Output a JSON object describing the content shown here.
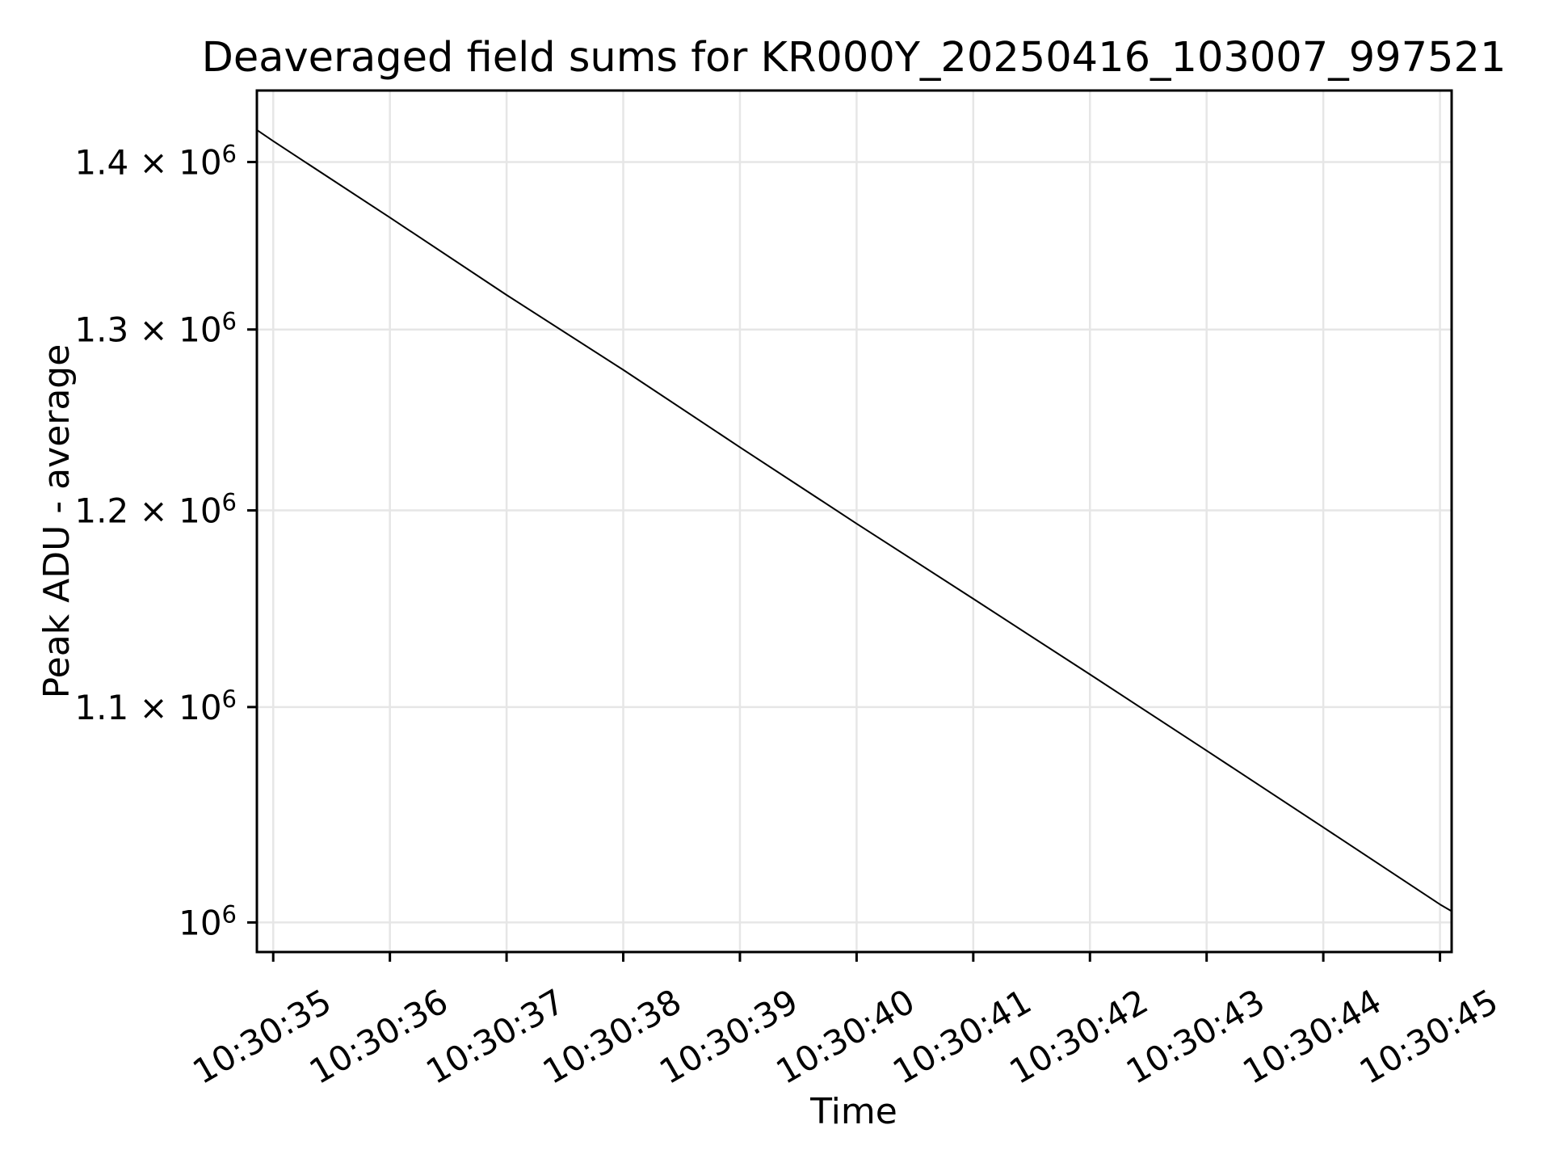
{
  "page": {
    "background": "#ffffff"
  },
  "chart_data": {
    "type": "line",
    "title": "Deaveraged field sums for KR000Y_20250416_103007_997521",
    "xlabel": "Time",
    "ylabel": "Peak ADU - average",
    "yscale": "log",
    "grid": true,
    "legend_position": "none",
    "background_color": "#ffffff",
    "axis_color": "#000000",
    "grid_color": "#e6e6e6",
    "line_color": "#000000",
    "xlim_seconds": [
      34.86,
      45.1
    ],
    "ylim": [
      987000,
      1445000
    ],
    "x_tick_rotation_deg": 30,
    "x_ticks": [
      {
        "t": 35,
        "label": "10:30:35"
      },
      {
        "t": 36,
        "label": "10:30:36"
      },
      {
        "t": 37,
        "label": "10:30:37"
      },
      {
        "t": 38,
        "label": "10:30:38"
      },
      {
        "t": 39,
        "label": "10:30:39"
      },
      {
        "t": 40,
        "label": "10:30:40"
      },
      {
        "t": 41,
        "label": "10:30:41"
      },
      {
        "t": 42,
        "label": "10:30:42"
      },
      {
        "t": 43,
        "label": "10:30:43"
      },
      {
        "t": 44,
        "label": "10:30:44"
      },
      {
        "t": 45,
        "label": "10:30:45"
      }
    ],
    "y_ticks": [
      {
        "value": 1000000,
        "base": "10",
        "exp": "6"
      },
      {
        "value": 1100000,
        "base": "1.1 × 10",
        "exp": "6"
      },
      {
        "value": 1200000,
        "base": "1.2 × 10",
        "exp": "6"
      },
      {
        "value": 1300000,
        "base": "1.3 × 10",
        "exp": "6"
      },
      {
        "value": 1400000,
        "base": "1.4 × 10",
        "exp": "6"
      }
    ],
    "series": [
      {
        "color": "#000000",
        "x_seconds": [
          34.86,
          35,
          36,
          37,
          38,
          39,
          40,
          41,
          42,
          43,
          44,
          45,
          45.1
        ],
        "y": [
          1420000,
          1413000,
          1366000,
          1320000,
          1277000,
          1234000,
          1193000,
          1154000,
          1116000,
          1079000,
          1043000,
          1008000,
          1005000
        ]
      }
    ]
  }
}
